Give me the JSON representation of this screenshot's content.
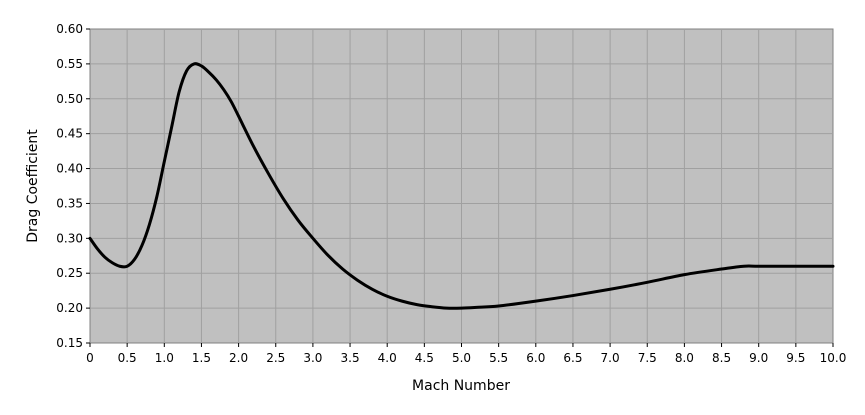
{
  "chart_data": {
    "type": "line",
    "title": "",
    "xlabel": "Mach Number",
    "ylabel": "Drag Coefficient",
    "xlim": [
      0,
      10
    ],
    "ylim": [
      0.15,
      0.6
    ],
    "x_ticks": [
      "0",
      "0.5",
      "1.0",
      "1.5",
      "2.0",
      "2.5",
      "3.0",
      "3.5",
      "4.0",
      "4.5",
      "5.0",
      "5.5",
      "6.0",
      "6.5",
      "7.0",
      "7.5",
      "8.0",
      "8.5",
      "9.0",
      "9.5",
      "10.0"
    ],
    "y_ticks": [
      "0.15",
      "0.20",
      "0.25",
      "0.30",
      "0.35",
      "0.40",
      "0.45",
      "0.50",
      "0.55",
      "0.60"
    ],
    "grid": true,
    "legend": "none",
    "colors": {
      "plot_background": "#c0c0c0",
      "grid": "#a0a0a0",
      "line": "#000000",
      "frame": "#808080"
    },
    "series": [
      {
        "x": [
          0.0,
          0.1,
          0.2,
          0.3,
          0.4,
          0.5,
          0.6,
          0.7,
          0.8,
          0.9,
          1.0,
          1.1,
          1.2,
          1.3,
          1.4,
          1.5,
          1.6,
          1.7,
          1.8,
          1.9,
          2.0,
          2.2,
          2.4,
          2.6,
          2.8,
          3.0,
          3.2,
          3.4,
          3.6,
          3.8,
          4.0,
          4.2,
          4.4,
          4.6,
          4.8,
          5.0,
          5.2,
          5.5,
          6.0,
          6.5,
          7.0,
          7.5,
          8.0,
          8.5,
          8.8,
          9.0,
          9.5,
          10.0
        ],
        "values": [
          0.3,
          0.285,
          0.273,
          0.265,
          0.26,
          0.26,
          0.27,
          0.29,
          0.32,
          0.36,
          0.41,
          0.46,
          0.51,
          0.54,
          0.55,
          0.547,
          0.538,
          0.527,
          0.513,
          0.496,
          0.475,
          0.432,
          0.393,
          0.357,
          0.326,
          0.3,
          0.276,
          0.256,
          0.24,
          0.227,
          0.217,
          0.21,
          0.205,
          0.202,
          0.2,
          0.2,
          0.201,
          0.203,
          0.21,
          0.218,
          0.227,
          0.237,
          0.248,
          0.256,
          0.26,
          0.26,
          0.26,
          0.26
        ]
      }
    ]
  }
}
